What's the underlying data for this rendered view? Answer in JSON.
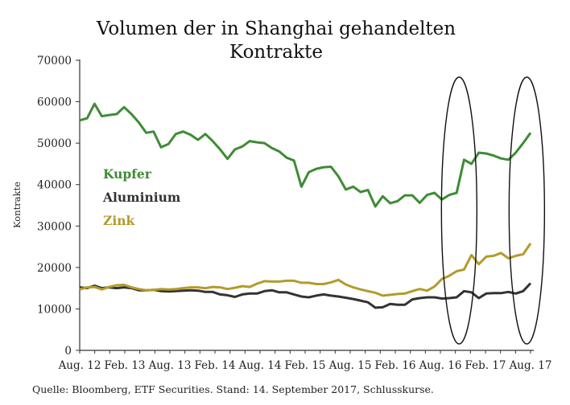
{
  "chart_data": {
    "type": "line",
    "title": "Volumen der in Shanghai gehandelten",
    "title_line2": "Kontrakte",
    "ylabel": "Kontrakte",
    "xlabel": "",
    "ylim": [
      0,
      70000
    ],
    "yticks": [
      0,
      10000,
      20000,
      30000,
      40000,
      50000,
      60000,
      70000
    ],
    "ytick_labels": [
      "0",
      "10000",
      "20000",
      "30000",
      "40000",
      "50000",
      "60000",
      "70000"
    ],
    "xlim": [
      0,
      60
    ],
    "xtick_positions": [
      0,
      6,
      12,
      18,
      24,
      30,
      36,
      42,
      48,
      54,
      60
    ],
    "xtick_labels": [
      "Aug. 12",
      "Feb. 13",
      "Aug. 13",
      "Feb. 14",
      "Aug. 14",
      "Feb. 15",
      "Aug. 15",
      "Feb. 16",
      "Aug. 16",
      "Feb. 17",
      "Aug. 17"
    ],
    "grid": false,
    "legend_position": "left-middle",
    "highlight_ellipses_at": [
      50.5,
      59.5
    ],
    "series": [
      {
        "name": "Kupfer",
        "color": "#3e8c35",
        "values": [
          55500,
          56000,
          59500,
          56500,
          56800,
          57000,
          58700,
          57000,
          55000,
          52500,
          52800,
          49000,
          49800,
          52200,
          52800,
          52000,
          50800,
          52200,
          50500,
          48500,
          46200,
          48500,
          49200,
          50500,
          50200,
          50000,
          48800,
          48000,
          46500,
          45800,
          39500,
          43000,
          43800,
          44200,
          44300,
          42000,
          38800,
          39500,
          38200,
          38700,
          34700,
          37200,
          35500,
          36000,
          37400,
          37400,
          35600,
          37500,
          38000,
          36400,
          37500,
          38000,
          46000,
          45000,
          47700,
          47500,
          47000,
          46300,
          46000,
          47700,
          50000,
          52500
        ]
      },
      {
        "name": "Aluminium",
        "color": "#333333",
        "values": [
          15200,
          15000,
          15600,
          15000,
          15200,
          15000,
          15200,
          15000,
          14500,
          14500,
          14600,
          14300,
          14200,
          14300,
          14400,
          14500,
          14400,
          14100,
          14100,
          13500,
          13300,
          12900,
          13500,
          13700,
          13700,
          14300,
          14500,
          14000,
          14000,
          13500,
          13000,
          12800,
          13200,
          13500,
          13200,
          13000,
          12700,
          12400,
          12000,
          11600,
          10300,
          10400,
          11200,
          11000,
          11000,
          12300,
          12600,
          12800,
          12800,
          12500,
          12600,
          12800,
          14300,
          14000,
          12600,
          13700,
          13800,
          13800,
          14100,
          13700,
          14300,
          16200
        ]
      },
      {
        "name": "Zink",
        "color": "#b59a2b",
        "values": [
          14700,
          15200,
          15300,
          14700,
          15300,
          15700,
          15800,
          15200,
          14800,
          14500,
          14600,
          14800,
          14700,
          14800,
          15000,
          15200,
          15200,
          15000,
          15300,
          15200,
          14800,
          15100,
          15500,
          15300,
          16100,
          16700,
          16600,
          16600,
          16800,
          16800,
          16300,
          16300,
          16000,
          16000,
          16400,
          17000,
          15900,
          15200,
          14700,
          14300,
          13900,
          13200,
          13400,
          13600,
          13700,
          14300,
          14800,
          14400,
          15400,
          17200,
          18000,
          19100,
          19500,
          23000,
          20800,
          22600,
          22800,
          23500,
          22200,
          22800,
          23200,
          25800
        ]
      }
    ]
  },
  "source_text": "Quelle: Bloomberg, ETF Securities. Stand: 14. September 2017, Schlusskurse."
}
